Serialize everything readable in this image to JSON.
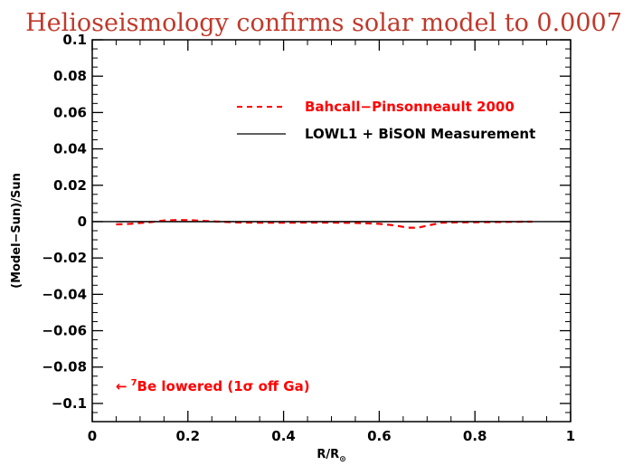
{
  "chart_data": {
    "type": "line",
    "title": "Helioseismology confirms solar model to 0.0007",
    "title_color": "#c0392b",
    "xlabel": "R/R",
    "xlabel_subscript": "⊙",
    "ylabel": "(Model−Sun)/Sun",
    "xlim": [
      0,
      1
    ],
    "ylim": [
      -0.11,
      0.1
    ],
    "x_ticks": [
      {
        "value": 0,
        "label": "0"
      },
      {
        "value": 0.2,
        "label": "0.2"
      },
      {
        "value": 0.4,
        "label": "0.4"
      },
      {
        "value": 0.6,
        "label": "0.6"
      },
      {
        "value": 0.8,
        "label": "0.8"
      },
      {
        "value": 1,
        "label": "1"
      }
    ],
    "y_ticks": [
      {
        "value": 0.1,
        "label": "0.1"
      },
      {
        "value": 0.08,
        "label": "0.08"
      },
      {
        "value": 0.06,
        "label": "0.06"
      },
      {
        "value": 0.04,
        "label": "0.04"
      },
      {
        "value": 0.02,
        "label": "0.02"
      },
      {
        "value": 0,
        "label": "0"
      },
      {
        "value": -0.02,
        "label": "−0.02"
      },
      {
        "value": -0.04,
        "label": "−0.04"
      },
      {
        "value": -0.06,
        "label": "−0.06"
      },
      {
        "value": -0.08,
        "label": "−0.08"
      },
      {
        "value": -0.1,
        "label": "−0.1"
      }
    ],
    "x_minor_step": 0.05,
    "y_minor_step": 0.005,
    "grid": false,
    "legend_position": "top-right",
    "series": [
      {
        "name": "Bahcall−Pinsonneault 2000",
        "color": "#ff0000",
        "dashed": true,
        "x": [
          0.05,
          0.08,
          0.12,
          0.15,
          0.18,
          0.21,
          0.25,
          0.3,
          0.35,
          0.4,
          0.45,
          0.5,
          0.55,
          0.6,
          0.63,
          0.66,
          0.68,
          0.7,
          0.73,
          0.76,
          0.8,
          0.85,
          0.9,
          0.92
        ],
        "y": [
          -0.0015,
          -0.0012,
          -0.0003,
          0.0006,
          0.0009,
          0.0007,
          0.0002,
          -0.0004,
          -0.0006,
          -0.0006,
          -0.0005,
          -0.0005,
          -0.0007,
          -0.0012,
          -0.002,
          -0.0033,
          -0.0034,
          -0.0022,
          -0.0006,
          -0.0004,
          -0.0003,
          -0.0002,
          0.0,
          0.0
        ]
      },
      {
        "name": "LOWL1 + BiSON Measurement",
        "color": "#000000",
        "dashed": false,
        "x": [
          0.05,
          0.92
        ],
        "y": [
          0,
          0
        ]
      }
    ],
    "zero_line": {
      "y": 0,
      "color": "#000000"
    },
    "annotation": {
      "text": "Be lowered (1σ off Ga)",
      "arrow": "←",
      "superscript": "7",
      "color": "#ff0000",
      "position": "lower-left"
    }
  }
}
